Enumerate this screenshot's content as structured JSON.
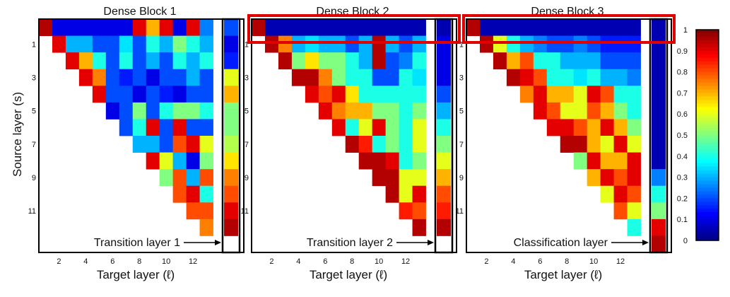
{
  "chart_data": {
    "type": "heatmap",
    "colormap": "jet",
    "colorbar": {
      "min": 0,
      "max": 1,
      "ticks": [
        "0",
        "0.1",
        "0.2",
        "0.3",
        "0.4",
        "0.5",
        "0.6",
        "0.7",
        "0.8",
        "0.9",
        "1"
      ]
    },
    "ylabel": "Source layer (s)",
    "panels": [
      {
        "title": "Dense Block 1",
        "xlabel": "Target layer (ℓ)",
        "xticks": [
          "2",
          "4",
          "6",
          "8",
          "10",
          "12"
        ],
        "yticks": [
          "1",
          "3",
          "5",
          "7",
          "9",
          "11"
        ],
        "annotation": "Transition layer 1",
        "values": [
          [
            0.95,
            0.1,
            0.1,
            0.1,
            0.1,
            0.1,
            0.1,
            0.9,
            0.7,
            0.9,
            0.1,
            0.9,
            0.25,
            0.2
          ],
          [
            null,
            0.9,
            0.3,
            0.3,
            0.2,
            0.2,
            0.35,
            0.2,
            0.4,
            0.3,
            0.5,
            0.4,
            0.3,
            0.1
          ],
          [
            null,
            null,
            0.9,
            0.7,
            0.4,
            0.2,
            0.4,
            0.2,
            0.3,
            0.2,
            0.4,
            0.3,
            0.4,
            0.15
          ],
          [
            null,
            null,
            null,
            0.9,
            0.75,
            0.2,
            0.15,
            0.2,
            0.1,
            0.2,
            0.2,
            0.3,
            0.2,
            0.6
          ],
          [
            null,
            null,
            null,
            null,
            0.9,
            0.2,
            0.2,
            0.1,
            0.2,
            0.15,
            0.1,
            0.2,
            0.2,
            0.7
          ],
          [
            null,
            null,
            null,
            null,
            null,
            0.1,
            0.2,
            0.5,
            0.2,
            0.4,
            0.5,
            0.5,
            0.4,
            0.5
          ],
          [
            null,
            null,
            null,
            null,
            null,
            null,
            0.2,
            0.4,
            0.9,
            0.2,
            0.9,
            0.2,
            0.2,
            0.5
          ],
          [
            null,
            null,
            null,
            null,
            null,
            null,
            null,
            0.3,
            0.3,
            0.2,
            0.8,
            0.9,
            0.6,
            0.55
          ],
          [
            null,
            null,
            null,
            null,
            null,
            null,
            null,
            null,
            0.9,
            0.6,
            0.3,
            0.1,
            0.5,
            0.65
          ],
          [
            null,
            null,
            null,
            null,
            null,
            null,
            null,
            null,
            null,
            0.5,
            0.8,
            0.3,
            0.8,
            0.75
          ],
          [
            null,
            null,
            null,
            null,
            null,
            null,
            null,
            null,
            null,
            null,
            0.8,
            0.9,
            0.4,
            0.8
          ],
          [
            null,
            null,
            null,
            null,
            null,
            null,
            null,
            null,
            null,
            null,
            null,
            0.8,
            0.8,
            0.9
          ],
          [
            null,
            null,
            null,
            null,
            null,
            null,
            null,
            null,
            null,
            null,
            null,
            null,
            0.75,
            0.95
          ]
        ]
      },
      {
        "title": "Dense Block 2",
        "xlabel": "Target layer (ℓ)",
        "xticks": [
          "2",
          "4",
          "6",
          "8",
          "10",
          "12"
        ],
        "yticks": [
          "1",
          "3",
          "5",
          "7",
          "9",
          "11"
        ],
        "annotation": "Transition layer 2",
        "values": [
          [
            0.95,
            0.05,
            0.05,
            0.05,
            0.05,
            0.05,
            0.05,
            0.05,
            0.05,
            0.05,
            0.05,
            0.05,
            0.05,
            0.05
          ],
          [
            null,
            0.95,
            0.75,
            0.3,
            0.35,
            0.3,
            0.3,
            0.2,
            0.3,
            0.95,
            0.3,
            0.2,
            0.3,
            0.1
          ],
          [
            null,
            null,
            0.95,
            0.5,
            0.65,
            0.5,
            0.5,
            0.4,
            0.3,
            0.95,
            0.2,
            0.25,
            0.4,
            0.1
          ],
          [
            null,
            null,
            null,
            0.95,
            0.95,
            0.75,
            0.5,
            0.4,
            0.4,
            0.2,
            0.2,
            0.4,
            0.35,
            0.1
          ],
          [
            null,
            null,
            null,
            null,
            0.9,
            0.8,
            0.9,
            0.65,
            0.4,
            0.4,
            0.4,
            0.4,
            0.4,
            0.2
          ],
          [
            null,
            null,
            null,
            null,
            null,
            0.9,
            0.75,
            0.7,
            0.7,
            0.5,
            0.5,
            0.4,
            0.5,
            0.3
          ],
          [
            null,
            null,
            null,
            null,
            null,
            null,
            0.9,
            0.4,
            0.6,
            0.9,
            0.5,
            0.4,
            0.6,
            0.4
          ],
          [
            null,
            null,
            null,
            null,
            null,
            null,
            null,
            0.95,
            0.85,
            0.4,
            0.5,
            0.4,
            0.6,
            0.5
          ],
          [
            null,
            null,
            null,
            null,
            null,
            null,
            null,
            null,
            0.95,
            0.95,
            0.9,
            0.4,
            0.5,
            0.6
          ],
          [
            null,
            null,
            null,
            null,
            null,
            null,
            null,
            null,
            null,
            0.95,
            0.95,
            0.6,
            0.6,
            0.7
          ],
          [
            null,
            null,
            null,
            null,
            null,
            null,
            null,
            null,
            null,
            null,
            0.95,
            0.6,
            0.9,
            0.8
          ],
          [
            null,
            null,
            null,
            null,
            null,
            null,
            null,
            null,
            null,
            null,
            null,
            0.85,
            0.8,
            0.85
          ],
          [
            null,
            null,
            null,
            null,
            null,
            null,
            null,
            null,
            null,
            null,
            null,
            null,
            0.95,
            0.95
          ]
        ]
      },
      {
        "title": "Dense Block 3",
        "xlabel": "Target layer (ℓ)",
        "xticks": [
          "2",
          "4",
          "6",
          "8",
          "10",
          "12"
        ],
        "yticks": [
          "1",
          "3",
          "5",
          "7",
          "9",
          "11"
        ],
        "annotation": "Classification layer",
        "values": [
          [
            0.95,
            0.05,
            0.05,
            0.05,
            0.05,
            0.05,
            0.05,
            0.05,
            0.05,
            0.05,
            0.05,
            0.05,
            0.05,
            0.05
          ],
          [
            null,
            0.95,
            0.6,
            0.4,
            0.3,
            0.25,
            0.2,
            0.2,
            0.25,
            0.2,
            0.15,
            0.15,
            0.15,
            0.05
          ],
          [
            null,
            null,
            0.95,
            0.7,
            0.8,
            0.4,
            0.4,
            0.3,
            0.3,
            0.3,
            0.2,
            0.2,
            0.2,
            0.05
          ],
          [
            null,
            null,
            null,
            0.95,
            0.9,
            0.8,
            0.4,
            0.4,
            0.35,
            0.4,
            0.3,
            0.3,
            0.25,
            0.05
          ],
          [
            null,
            null,
            null,
            null,
            0.75,
            0.9,
            0.7,
            0.7,
            0.6,
            0.9,
            0.8,
            0.4,
            0.4,
            0.05
          ],
          [
            null,
            null,
            null,
            null,
            null,
            0.9,
            0.8,
            0.6,
            0.6,
            0.8,
            0.7,
            0.5,
            0.4,
            0.05
          ],
          [
            null,
            null,
            null,
            null,
            null,
            null,
            0.9,
            0.9,
            0.8,
            0.7,
            0.9,
            0.7,
            0.5,
            0.05
          ],
          [
            null,
            null,
            null,
            null,
            null,
            null,
            null,
            0.95,
            0.95,
            0.7,
            0.6,
            0.9,
            0.6,
            0.05
          ],
          [
            null,
            null,
            null,
            null,
            null,
            null,
            null,
            null,
            0.5,
            0.9,
            0.7,
            0.7,
            0.9,
            0.05
          ],
          [
            null,
            null,
            null,
            null,
            null,
            null,
            null,
            null,
            null,
            0.7,
            0.9,
            0.8,
            0.9,
            0.25
          ],
          [
            null,
            null,
            null,
            null,
            null,
            null,
            null,
            null,
            null,
            null,
            0.6,
            0.9,
            0.8,
            0.4
          ],
          [
            null,
            null,
            null,
            null,
            null,
            null,
            null,
            null,
            null,
            null,
            null,
            0.8,
            0.6,
            0.5
          ],
          [
            null,
            null,
            null,
            null,
            null,
            null,
            null,
            null,
            null,
            null,
            null,
            null,
            0.4,
            0.9
          ],
          [
            null,
            null,
            null,
            null,
            null,
            null,
            null,
            null,
            null,
            null,
            null,
            null,
            null,
            0.95
          ]
        ]
      }
    ],
    "highlights": [
      {
        "panel": 1,
        "row": 0,
        "color": "#e00000"
      },
      {
        "panel": 2,
        "row": 0,
        "color": "#e00000"
      }
    ]
  }
}
